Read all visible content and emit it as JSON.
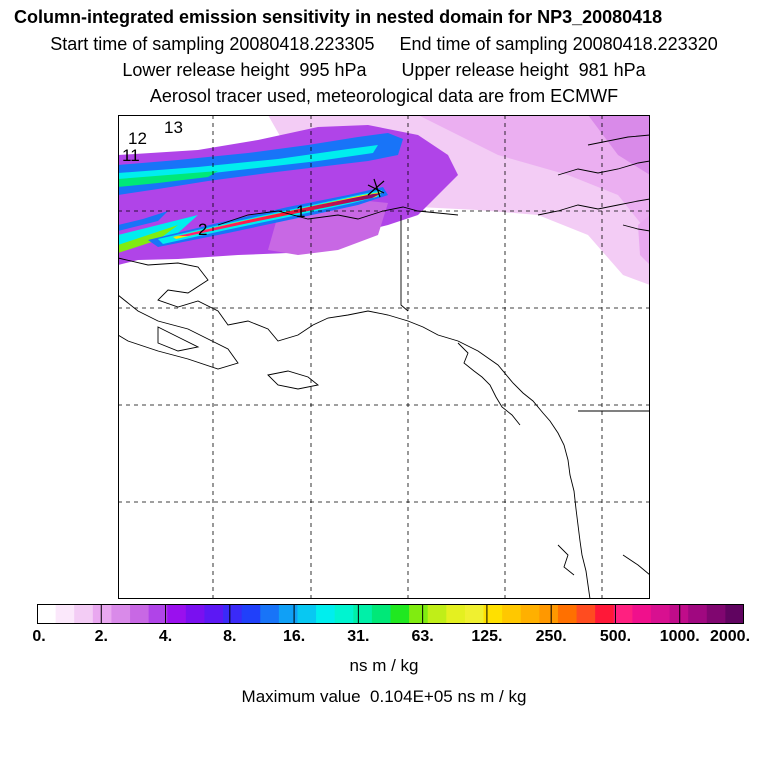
{
  "header": {
    "title": "Column-integrated emission sensitivity in nested domain for NP3_20080418",
    "sampling_line": "Start time of sampling 20080418.223305     End time of sampling 20080418.223320",
    "height_line": "Lower release height  995 hPa       Upper release height  981 hPa",
    "tracer_line": "Aerosol tracer used, meteorological data are from ECMWF"
  },
  "map": {
    "annotations": [
      "13",
      "12",
      "11",
      "2",
      "1"
    ]
  },
  "colorbar": {
    "tick_labels": [
      "0.",
      "2.",
      "4.",
      "8.",
      "16.",
      "31.",
      "63.",
      "125.",
      "250.",
      "500.",
      "1000.",
      "2000."
    ],
    "units": "ns m / kg",
    "colors": [
      "#ffffff",
      "#fbe8fb",
      "#f3ccf5",
      "#e9a8f0",
      "#d98ae9",
      "#c868e4",
      "#b044e8",
      "#9a10ee",
      "#7a10f0",
      "#5c18f4",
      "#3a2af8",
      "#2040fa",
      "#1874f8",
      "#10a0f6",
      "#08c8f2",
      "#00eeee",
      "#00f4d0",
      "#00f0a8",
      "#00e878",
      "#20e820",
      "#80ec10",
      "#c0ee18",
      "#e4f020",
      "#f0f030",
      "#ffe000",
      "#ffc800",
      "#ffb000",
      "#ff9800",
      "#ff7000",
      "#ff4c20",
      "#ff1838",
      "#ff2080",
      "#f0108c",
      "#d81090",
      "#c00c8a",
      "#a00880",
      "#800670",
      "#600460"
    ]
  },
  "footer": {
    "max_value": "Maximum value  0.104E+05 ns m / kg"
  }
}
